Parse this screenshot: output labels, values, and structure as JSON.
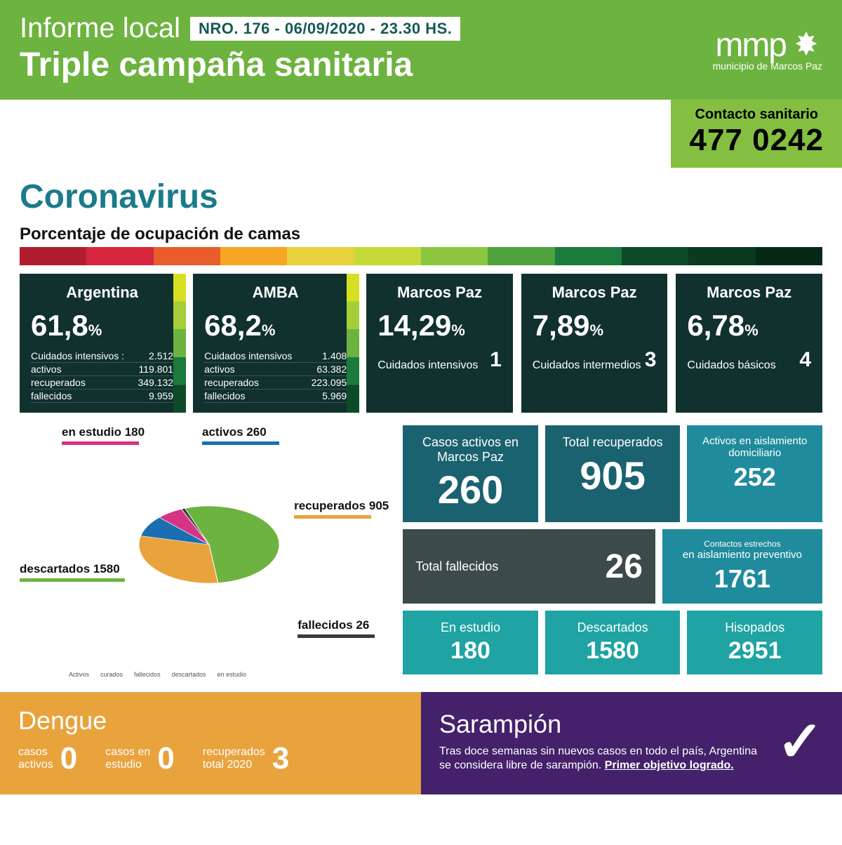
{
  "header": {
    "title1": "Informe local",
    "pill": "NRO. 176 - 06/09/2020 - 23.30 HS.",
    "title2": "Triple campaña sanitaria",
    "logo_text": "mmp",
    "logo_sub": "municipio de Marcos Paz"
  },
  "contact": {
    "label": "Contacto  sanitario",
    "number": "477 0242"
  },
  "corona_title": "Coronavirus",
  "occ_label": "Porcentaje de ocupación de camas",
  "spectrum_colors": [
    "#b11d2f",
    "#d7263d",
    "#e85d2a",
    "#f5a623",
    "#e8d23c",
    "#c5d938",
    "#8cc63f",
    "#4fa33e",
    "#1a7b3c",
    "#0d4a28",
    "#0a3a20",
    "#062817"
  ],
  "cards": [
    {
      "type": "full",
      "title": "Argentina",
      "pct": "61,8",
      "rows": [
        [
          "Cuidados intensivos :",
          "2.512"
        ],
        [
          "activos",
          "119.801"
        ],
        [
          "recuperados",
          "349.132"
        ],
        [
          "fallecidos",
          "9.959"
        ]
      ]
    },
    {
      "type": "full",
      "title": "AMBA",
      "pct": "68,2",
      "rows": [
        [
          "Cuidados intensivos",
          "1.408"
        ],
        [
          "activos",
          "63.382"
        ],
        [
          "recuperados",
          "223.095"
        ],
        [
          "fallecidos",
          "5.969"
        ]
      ]
    },
    {
      "type": "short",
      "title": "Marcos Paz",
      "pct": "14,29",
      "sub_label": "Cuidados intensivos",
      "sub_val": "1"
    },
    {
      "type": "short",
      "title": "Marcos Paz",
      "pct": "7,89",
      "sub_label": "Cuidados intermedios",
      "sub_val": "3"
    },
    {
      "type": "short",
      "title": "Marcos Paz",
      "pct": "6,78",
      "sub_label": "Cuidados básicos",
      "sub_val": "4"
    }
  ],
  "pie": {
    "slices": [
      {
        "label": "descartados",
        "value": 1580,
        "color": "#6db33f"
      },
      {
        "label": "recuperados",
        "value": 905,
        "color": "#e8a33d"
      },
      {
        "label": "activos",
        "value": 260,
        "color": "#1a6fb0"
      },
      {
        "label": "en estudio",
        "value": 180,
        "color": "#d63384"
      },
      {
        "label": "fallecidos",
        "value": 26,
        "color": "#3a3a3a"
      }
    ],
    "labels": {
      "en_estudio": "en estudio 180",
      "activos": "activos 260",
      "recuperados": "recuperados 905",
      "descartados": "descartados 1580",
      "fallecidos": "fallecidos 26"
    },
    "legend": [
      "Activos",
      "curados",
      "fallecidos",
      "descartados",
      "en estudio"
    ]
  },
  "stats": {
    "activos": {
      "label": "Casos activos en Marcos Paz",
      "value": "260",
      "bg": "#1a6270"
    },
    "recuperados": {
      "label": "Total recuperados",
      "value": "905",
      "bg": "#1a6270"
    },
    "aislamiento": {
      "label": "Activos en aislamiento domiciliario",
      "value": "252",
      "bg": "#1f8b9c"
    },
    "fallecidos": {
      "label": "Total fallecidos",
      "value": "26",
      "bg": "#3d4a4a"
    },
    "contactos": {
      "label_top": "Contactos estrechos",
      "label": "en aislamiento preventivo",
      "value": "1761",
      "bg": "#1f8b9c"
    },
    "estudio": {
      "label": "En estudio",
      "value": "180",
      "bg": "#1fa3a3"
    },
    "descartados": {
      "label": "Descartados",
      "value": "1580",
      "bg": "#1fa3a3"
    },
    "hisopados": {
      "label": "Hisopados",
      "value": "2951",
      "bg": "#1fa3a3"
    }
  },
  "dengue": {
    "title": "Dengue",
    "items": [
      {
        "label": "casos\nactivos",
        "value": "0"
      },
      {
        "label": "casos en\nestudio",
        "value": "0"
      },
      {
        "label": "recuperados\ntotal 2020",
        "value": "3"
      }
    ]
  },
  "sarampion": {
    "title": "Sarampión",
    "text": "Tras doce semanas sin nuevos casos en todo el país, Argentina se considera libre de sarampión.",
    "bold": "Primer objetivo logrado."
  }
}
